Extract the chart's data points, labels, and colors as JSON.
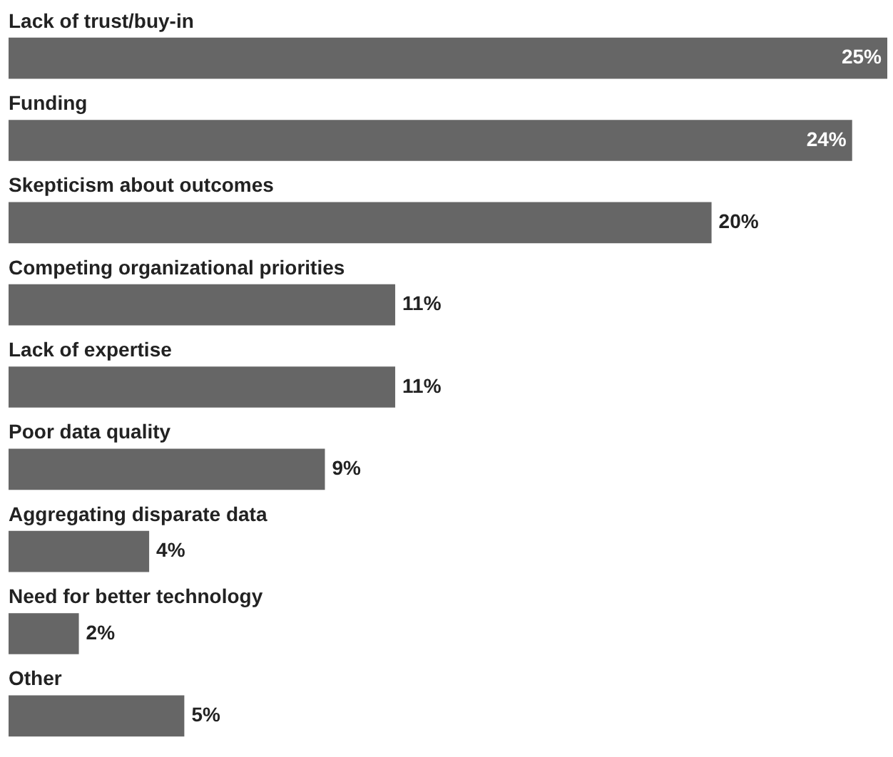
{
  "chart_data": {
    "type": "bar",
    "orientation": "horizontal",
    "legend": false,
    "tick_labels": false,
    "categories": [
      "Lack of trust/buy-in",
      "Funding",
      "Skepticism about outcomes",
      "Competing organizational priorities",
      "Lack of expertise",
      "Poor data quality",
      "Aggregating disparate data",
      "Need for better technology",
      "Other"
    ],
    "values": [
      25,
      24,
      20,
      11,
      11,
      9,
      4,
      2,
      5
    ],
    "value_labels": [
      "25%",
      "24%",
      "20%",
      "11%",
      "11%",
      "9%",
      "4%",
      "2%",
      "5%"
    ],
    "color": "#666666"
  }
}
